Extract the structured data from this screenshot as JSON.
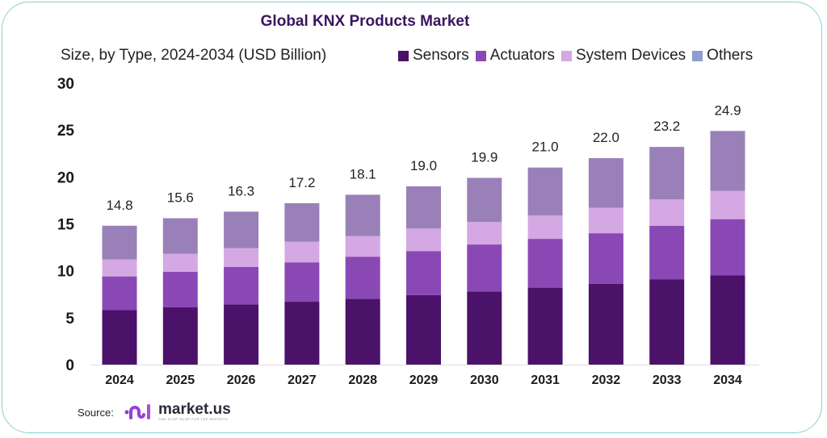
{
  "chart_data": {
    "type": "bar",
    "stacked": true,
    "title": "Global KNX Products Market",
    "subtitle": "Size, by Type, 2024-2034 (USD Billion)",
    "xlabel": "",
    "ylabel": "",
    "ylim": [
      0,
      30
    ],
    "yticks": [
      "0",
      "5",
      "10",
      "15",
      "20",
      "25",
      "30"
    ],
    "grid": false,
    "legend_position": "top-right",
    "categories": [
      "2024",
      "2025",
      "2026",
      "2027",
      "2028",
      "2029",
      "2030",
      "2031",
      "2032",
      "2033",
      "2034"
    ],
    "series": [
      {
        "name": "Sensors",
        "color": "#4a1268",
        "values": [
          5.8,
          6.1,
          6.4,
          6.7,
          7.0,
          7.4,
          7.8,
          8.2,
          8.6,
          9.1,
          9.5
        ]
      },
      {
        "name": "Actuators",
        "color": "#8a48b4",
        "values": [
          3.6,
          3.8,
          4.0,
          4.2,
          4.5,
          4.7,
          5.0,
          5.2,
          5.4,
          5.7,
          6.0
        ]
      },
      {
        "name": "System Devices",
        "color": "#d4a8e2",
        "values": [
          1.8,
          1.9,
          2.0,
          2.2,
          2.2,
          2.4,
          2.4,
          2.5,
          2.7,
          2.8,
          3.0
        ]
      },
      {
        "name": "Others",
        "color": "#9a80b8",
        "legend_color": "#8e9ccf",
        "values": [
          3.6,
          3.8,
          3.9,
          4.1,
          4.4,
          4.5,
          4.7,
          5.1,
          5.3,
          5.6,
          6.4
        ]
      }
    ],
    "totals": [
      "14.8",
      "15.6",
      "16.3",
      "17.2",
      "18.1",
      "19.0",
      "19.9",
      "21.0",
      "22.0",
      "23.2",
      "24.9"
    ]
  },
  "source": {
    "label": "Source:",
    "brand": "market.us",
    "tagline": "ONE STOP SHOP FOR THE REPORTS"
  },
  "frame_color": "#86d3cb"
}
